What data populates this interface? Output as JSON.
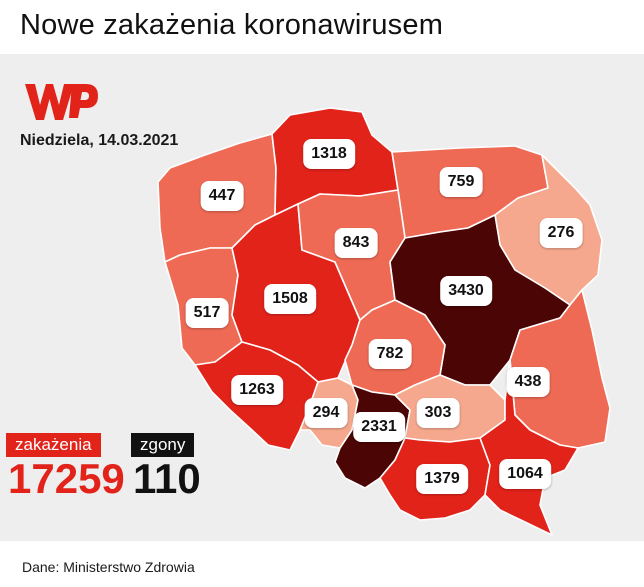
{
  "title": "Nowe zakażenia koronawirusem",
  "date": "Niedziela, 14.03.2021",
  "logo": {
    "name": "wp-logo",
    "color": "#e2231a"
  },
  "legend": {
    "cases_label": "zakażenia",
    "deaths_label": "zgony",
    "cases_total": "17259",
    "deaths_total": "110",
    "cases_color": "#e2231a",
    "deaths_color": "#111111"
  },
  "regions": [
    {
      "name": "zachodniopomorskie",
      "value": "447",
      "color": "#ee6a55"
    },
    {
      "name": "pomorskie",
      "value": "1318",
      "color": "#e2231a"
    },
    {
      "name": "warmińsko-mazurskie",
      "value": "759",
      "color": "#ee6a55"
    },
    {
      "name": "podlaskie",
      "value": "276",
      "color": "#f5a88d"
    },
    {
      "name": "lubuskie",
      "value": "517",
      "color": "#ee6a55"
    },
    {
      "name": "wielkopolskie",
      "value": "1508",
      "color": "#e2231a"
    },
    {
      "name": "kujawsko-pomorskie",
      "value": "843",
      "color": "#ee6a55"
    },
    {
      "name": "mazowieckie",
      "value": "3430",
      "color": "#4b0505"
    },
    {
      "name": "łódzkie",
      "value": "782",
      "color": "#ee6a55"
    },
    {
      "name": "lubelskie",
      "value": "438",
      "color": "#ee6a55"
    },
    {
      "name": "dolnośląskie",
      "value": "1263",
      "color": "#e2231a"
    },
    {
      "name": "opolskie",
      "value": "294",
      "color": "#f5a88d"
    },
    {
      "name": "śląskie",
      "value": "2331",
      "color": "#4b0505"
    },
    {
      "name": "świętokrzyskie",
      "value": "303",
      "color": "#f5a88d"
    },
    {
      "name": "małopolskie",
      "value": "1379",
      "color": "#e2231a"
    },
    {
      "name": "podkarpackie",
      "value": "1064",
      "color": "#e2231a"
    }
  ],
  "source": "Dane: Ministerstwo Zdrowia"
}
